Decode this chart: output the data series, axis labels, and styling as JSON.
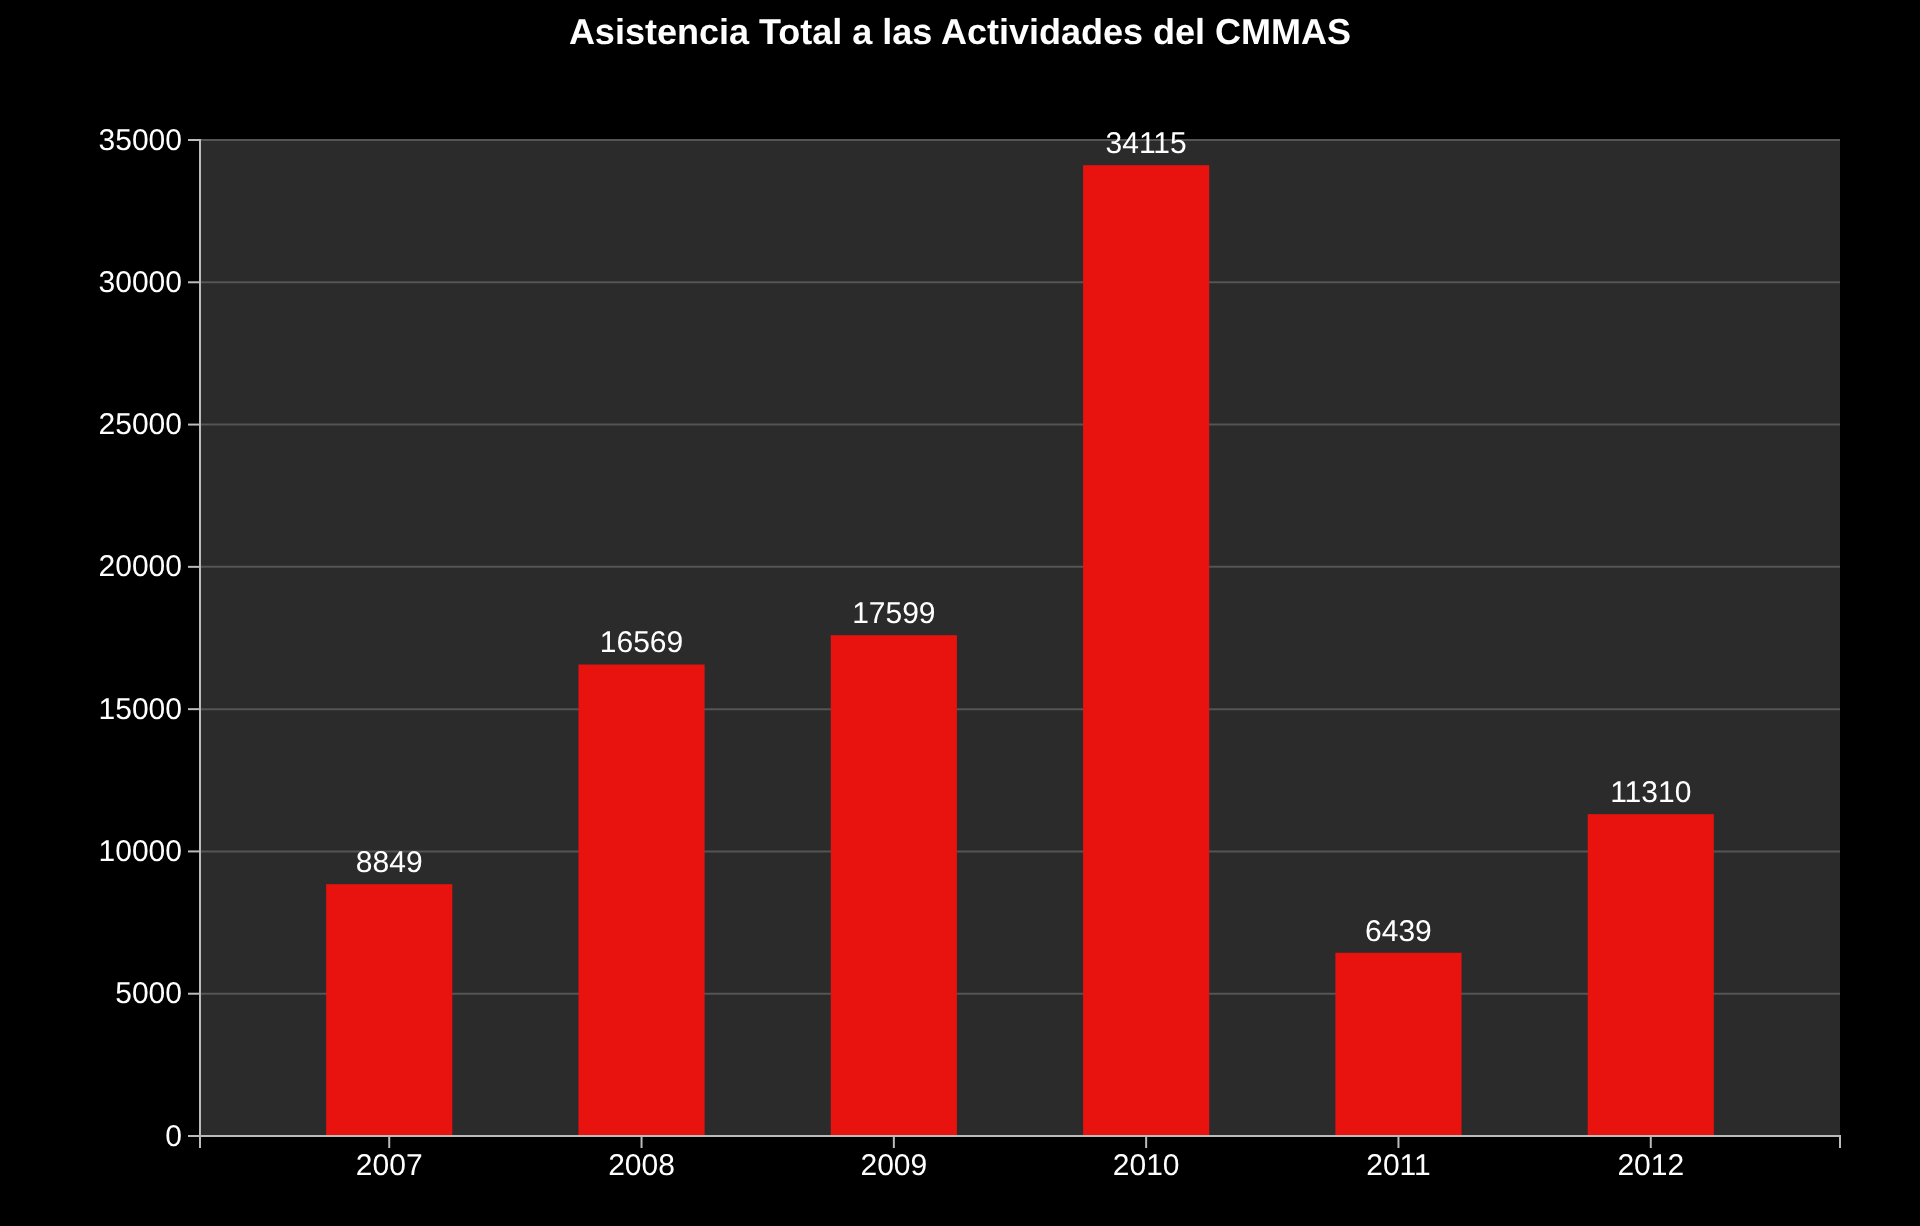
{
  "chart_data": {
    "type": "bar",
    "title": "Asistencia Total a las Actividades del CMMAS",
    "categories": [
      "2007",
      "2008",
      "2009",
      "2010",
      "2011",
      "2012"
    ],
    "values": [
      8849,
      16569,
      17599,
      34115,
      6439,
      11310
    ],
    "color": "#e8130f",
    "ylim": [
      0,
      35000
    ],
    "yticks": [
      0,
      5000,
      10000,
      15000,
      20000,
      25000,
      30000,
      35000
    ],
    "grid": "y",
    "data_labels": true
  }
}
